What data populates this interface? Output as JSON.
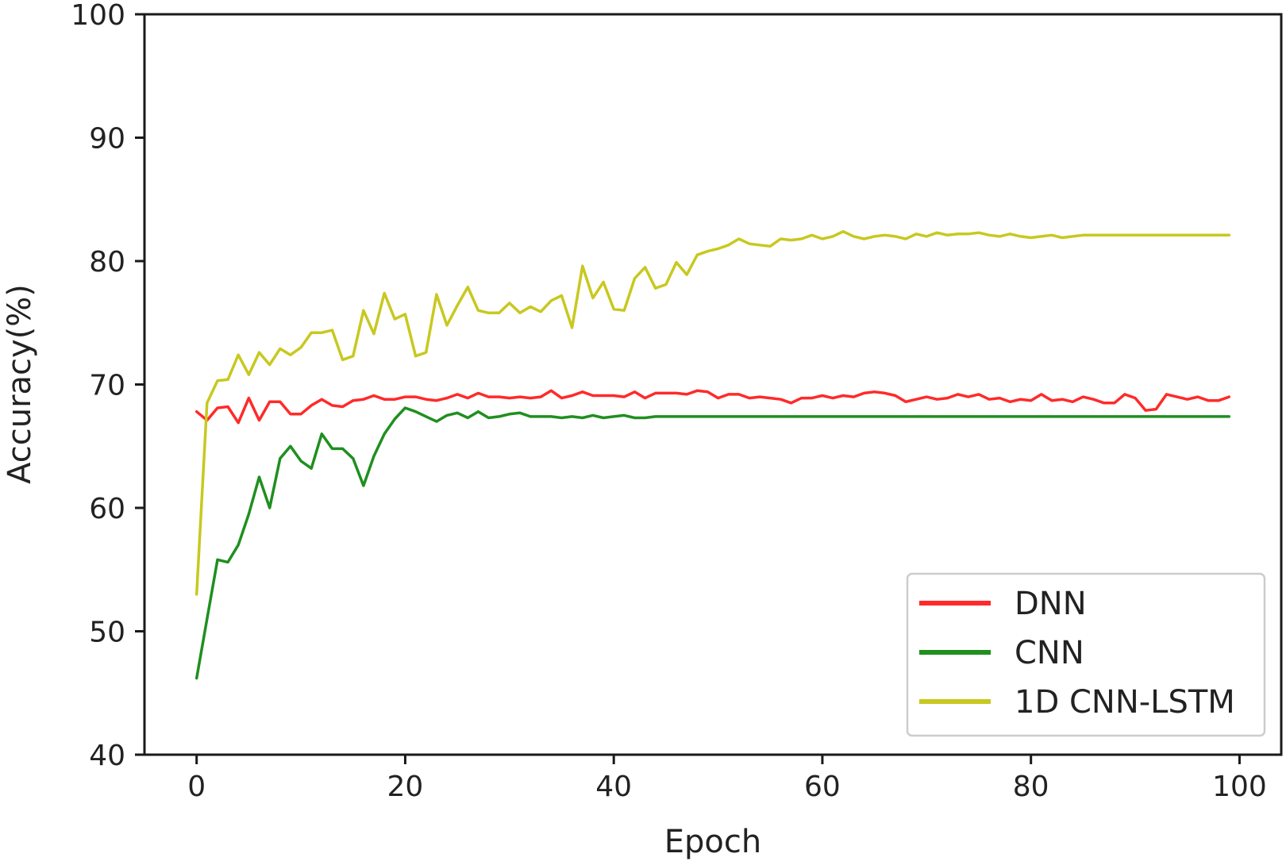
{
  "chart_data": {
    "type": "line",
    "title": "",
    "xlabel": "Epoch",
    "ylabel": "Accuracy(%)",
    "xlim": [
      -5,
      104
    ],
    "ylim": [
      40,
      100
    ],
    "xticks": [
      0,
      20,
      40,
      60,
      80,
      100
    ],
    "yticks": [
      40,
      50,
      60,
      70,
      80,
      90,
      100
    ],
    "grid": false,
    "legend_position": "lower-right",
    "series": [
      {
        "name": "DNN",
        "color": "#ff2a2a",
        "x": [
          0,
          1,
          2,
          3,
          4,
          5,
          6,
          7,
          8,
          9,
          10,
          11,
          12,
          13,
          14,
          15,
          16,
          17,
          18,
          19,
          20,
          21,
          22,
          23,
          24,
          25,
          26,
          27,
          28,
          29,
          30,
          31,
          32,
          33,
          34,
          35,
          36,
          37,
          38,
          39,
          40,
          41,
          42,
          43,
          44,
          45,
          46,
          47,
          48,
          49,
          50,
          51,
          52,
          53,
          54,
          55,
          56,
          57,
          58,
          59,
          60,
          61,
          62,
          63,
          64,
          65,
          66,
          67,
          68,
          69,
          70,
          71,
          72,
          73,
          74,
          75,
          76,
          77,
          78,
          79,
          80,
          81,
          82,
          83,
          84,
          85,
          86,
          87,
          88,
          89,
          90,
          91,
          92,
          93,
          94,
          95,
          96,
          97,
          98,
          99
        ],
        "y": [
          67.8,
          67.1,
          68.1,
          68.2,
          66.9,
          68.9,
          67.1,
          68.6,
          68.6,
          67.6,
          67.6,
          68.3,
          68.8,
          68.3,
          68.2,
          68.7,
          68.8,
          69.1,
          68.8,
          68.8,
          69.0,
          69.0,
          68.8,
          68.7,
          68.9,
          69.2,
          68.9,
          69.3,
          69.0,
          69.0,
          68.9,
          69.0,
          68.9,
          69.0,
          69.5,
          68.9,
          69.1,
          69.4,
          69.1,
          69.1,
          69.1,
          69.0,
          69.4,
          68.9,
          69.3,
          69.3,
          69.3,
          69.2,
          69.5,
          69.4,
          68.9,
          69.2,
          69.2,
          68.9,
          69.0,
          68.9,
          68.8,
          68.5,
          68.9,
          68.9,
          69.1,
          68.9,
          69.1,
          69.0,
          69.3,
          69.4,
          69.3,
          69.1,
          68.6,
          68.8,
          69.0,
          68.8,
          68.9,
          69.2,
          69.0,
          69.2,
          68.8,
          68.9,
          68.6,
          68.8,
          68.7,
          69.2,
          68.7,
          68.8,
          68.6,
          69.0,
          68.8,
          68.5,
          68.5,
          69.2,
          68.9,
          67.9,
          68.0,
          69.2,
          69.0,
          68.8,
          69.0,
          68.7,
          68.7,
          69.0
        ]
      },
      {
        "name": "CNN",
        "color": "#1f8f1f",
        "x": [
          0,
          1,
          2,
          3,
          4,
          5,
          6,
          7,
          8,
          9,
          10,
          11,
          12,
          13,
          14,
          15,
          16,
          17,
          18,
          19,
          20,
          21,
          22,
          23,
          24,
          25,
          26,
          27,
          28,
          29,
          30,
          31,
          32,
          33,
          34,
          35,
          36,
          37,
          38,
          39,
          40,
          41,
          42,
          43,
          44,
          45,
          46,
          47,
          48,
          49,
          50,
          55,
          60,
          65,
          70,
          75,
          80,
          85,
          90,
          95,
          99
        ],
        "y": [
          46.2,
          51.0,
          55.8,
          55.6,
          57.0,
          59.5,
          62.5,
          60.0,
          64.0,
          65.0,
          63.8,
          63.2,
          66.0,
          64.8,
          64.8,
          64.0,
          61.8,
          64.2,
          66.0,
          67.2,
          68.1,
          67.8,
          67.4,
          67.0,
          67.5,
          67.7,
          67.3,
          67.8,
          67.3,
          67.4,
          67.6,
          67.7,
          67.4,
          67.4,
          67.4,
          67.3,
          67.4,
          67.3,
          67.5,
          67.3,
          67.4,
          67.5,
          67.3,
          67.3,
          67.4,
          67.4,
          67.4,
          67.4,
          67.4,
          67.4,
          67.4,
          67.4,
          67.4,
          67.4,
          67.4,
          67.4,
          67.4,
          67.4,
          67.4,
          67.4,
          67.4
        ]
      },
      {
        "name": "1D CNN-LSTM",
        "color": "#c8c820",
        "x": [
          0,
          1,
          2,
          3,
          4,
          5,
          6,
          7,
          8,
          9,
          10,
          11,
          12,
          13,
          14,
          15,
          16,
          17,
          18,
          19,
          20,
          21,
          22,
          23,
          24,
          25,
          26,
          27,
          28,
          29,
          30,
          31,
          32,
          33,
          34,
          35,
          36,
          37,
          38,
          39,
          40,
          41,
          42,
          43,
          44,
          45,
          46,
          47,
          48,
          49,
          50,
          51,
          52,
          53,
          54,
          55,
          56,
          57,
          58,
          59,
          60,
          61,
          62,
          63,
          64,
          65,
          66,
          67,
          68,
          69,
          70,
          71,
          72,
          73,
          74,
          75,
          76,
          77,
          78,
          79,
          80,
          81,
          82,
          83,
          84,
          85,
          86,
          87,
          88,
          89,
          90,
          91,
          92,
          93,
          94,
          95,
          96,
          97,
          98,
          99
        ],
        "y": [
          53.0,
          68.5,
          70.3,
          70.4,
          72.4,
          70.8,
          72.6,
          71.6,
          72.9,
          72.4,
          73.0,
          74.2,
          74.2,
          74.4,
          72.0,
          72.3,
          76.0,
          74.1,
          77.4,
          75.3,
          75.7,
          72.3,
          72.6,
          77.3,
          74.8,
          76.4,
          77.9,
          76.0,
          75.8,
          75.8,
          76.6,
          75.8,
          76.3,
          75.9,
          76.8,
          77.2,
          74.6,
          79.6,
          77.0,
          78.3,
          76.1,
          76.0,
          78.6,
          79.5,
          77.8,
          78.1,
          79.9,
          78.9,
          80.5,
          80.8,
          81.0,
          81.3,
          81.8,
          81.4,
          81.3,
          81.2,
          81.8,
          81.7,
          81.8,
          82.1,
          81.8,
          82.0,
          82.4,
          82.0,
          81.8,
          82.0,
          82.1,
          82.0,
          81.8,
          82.2,
          82.0,
          82.3,
          82.1,
          82.2,
          82.2,
          82.3,
          82.1,
          82.0,
          82.2,
          82.0,
          81.9,
          82.0,
          82.1,
          81.9,
          82.0,
          82.1,
          82.1,
          82.1,
          82.1,
          82.1,
          82.1,
          82.1,
          82.1,
          82.1,
          82.1,
          82.1,
          82.1,
          82.1,
          82.1,
          82.1
        ]
      }
    ]
  }
}
